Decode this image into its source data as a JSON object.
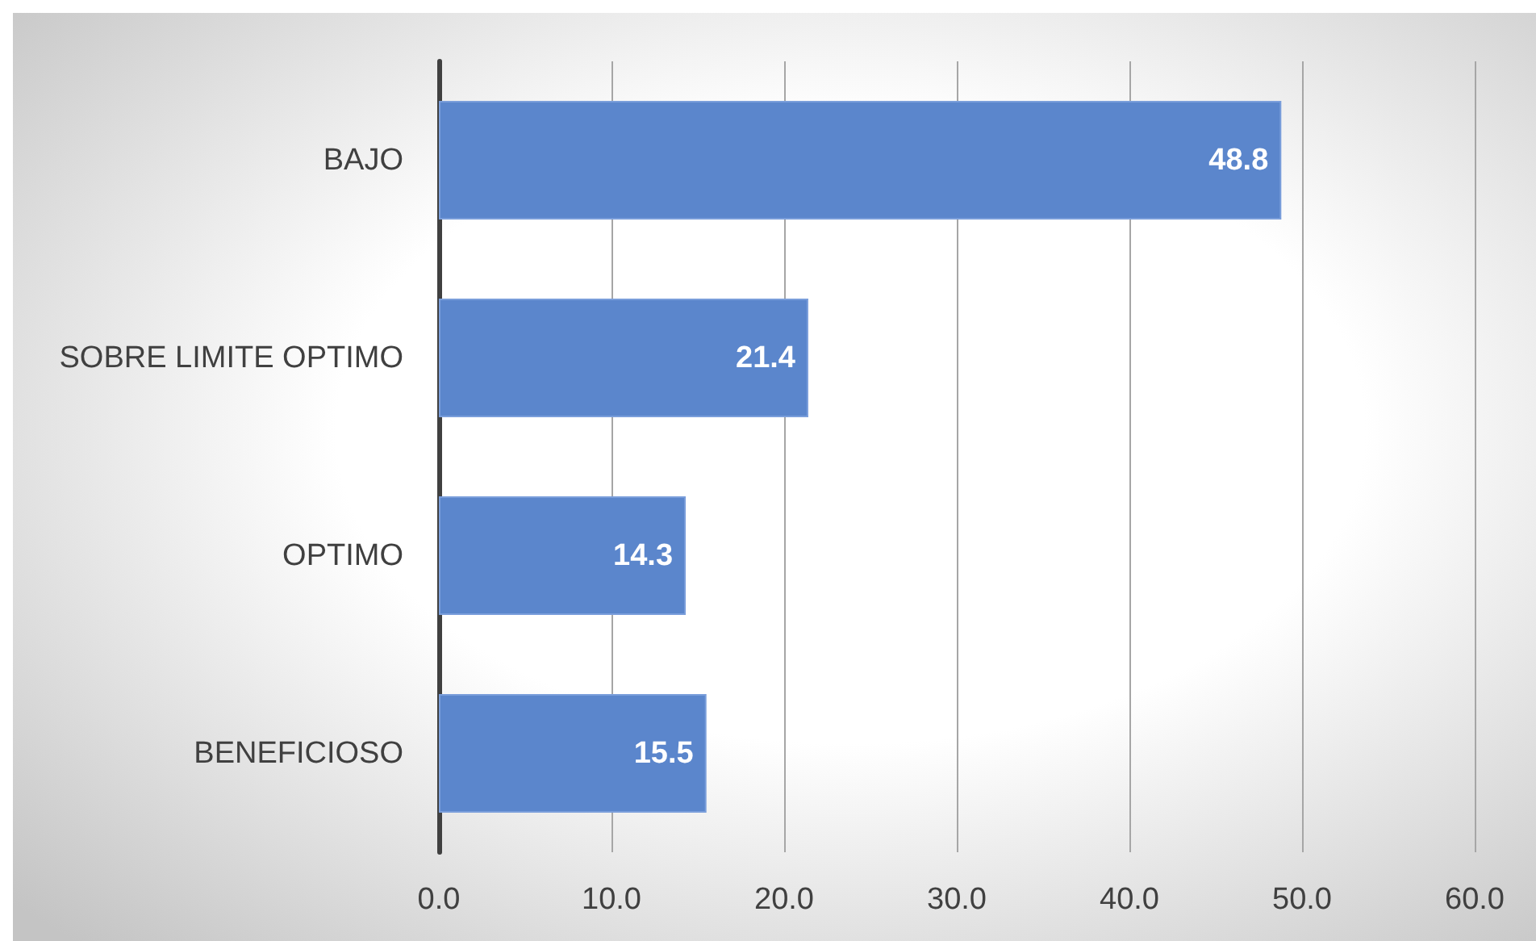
{
  "chart_data": {
    "type": "bar",
    "orientation": "horizontal",
    "categories": [
      "BAJO",
      "SOBRE LIMITE OPTIMO",
      "OPTIMO",
      "BENEFICIOSO"
    ],
    "values": [
      48.8,
      21.4,
      14.3,
      15.5
    ],
    "color": "#5b86cc",
    "xlim": [
      0,
      60
    ],
    "xticks": [
      {
        "value": 0,
        "label": "0.0"
      },
      {
        "value": 10,
        "label": "10.0"
      },
      {
        "value": 20,
        "label": "20.0"
      },
      {
        "value": 30,
        "label": "30.0"
      },
      {
        "value": 40,
        "label": "40.0"
      },
      {
        "value": 50,
        "label": "50.0"
      },
      {
        "value": 60,
        "label": "60.0"
      }
    ],
    "grid": "x",
    "data_labels": true
  }
}
